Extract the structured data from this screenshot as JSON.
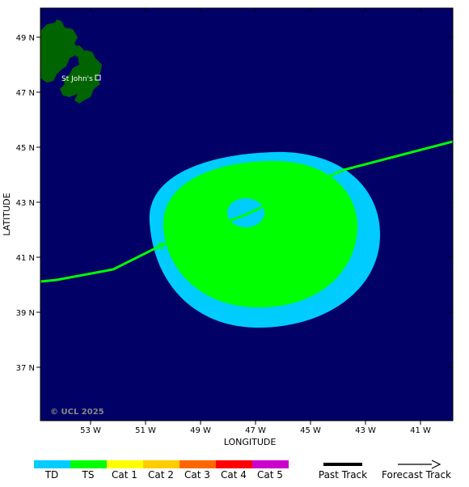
{
  "map": {
    "x_axis_label": "LONGITUDE",
    "y_axis_label": "LATITUDE",
    "watermark": "© UCL 2025",
    "city_label": "St John's",
    "ocean_color": "#000066",
    "land_color": "#006400",
    "x_ticks": [
      "53 W",
      "51 W",
      "49 W",
      "47 W",
      "45 W",
      "43 W",
      "41 W"
    ],
    "y_ticks": [
      "49 N",
      "47 N",
      "45 N",
      "43 N",
      "41 N",
      "39 N",
      "37 N"
    ]
  },
  "wind_field": {
    "td_color": "#00ccff",
    "ts_color": "#00ff00",
    "eye_color": "#00ccff"
  },
  "track": {
    "color": "#00ff00"
  },
  "legend": {
    "categories": [
      {
        "label": "TD",
        "color": "#00ccff"
      },
      {
        "label": "TS",
        "color": "#00ff00"
      },
      {
        "label": "Cat 1",
        "color": "#ffff00"
      },
      {
        "label": "Cat 2",
        "color": "#ffcc00"
      },
      {
        "label": "Cat 3",
        "color": "#ff6600"
      },
      {
        "label": "Cat 4",
        "color": "#ff0000"
      },
      {
        "label": "Cat 5",
        "color": "#cc00cc"
      }
    ],
    "past_track_label": "Past Track",
    "forecast_track_label": "Forecast Track"
  }
}
